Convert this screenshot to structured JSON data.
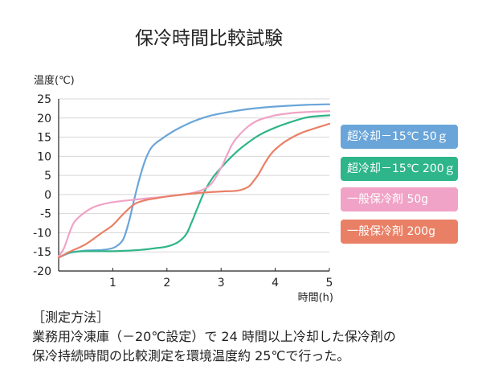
{
  "chart_data": {
    "type": "line",
    "title": "保冷時間比較試験",
    "ylabel": "温度(℃)",
    "xlabel": "時間(h)",
    "xlim": [
      0,
      5
    ],
    "ylim": [
      -20,
      25
    ],
    "xticks": [
      1,
      2,
      3,
      4,
      5
    ],
    "yticks": [
      25,
      20,
      15,
      10,
      5,
      0,
      -5,
      -10,
      -15,
      -20
    ],
    "grid": "horizontal",
    "legend_position": "right",
    "series": [
      {
        "name": "超冷却－15℃ 50ｇ",
        "color": "#6aa5d9",
        "x": [
          0,
          0.2,
          0.4,
          0.6,
          0.8,
          1.0,
          1.1,
          1.2,
          1.3,
          1.4,
          1.5,
          1.6,
          1.7,
          1.8,
          1.9,
          2.0,
          2.2,
          2.5,
          2.8,
          3.2,
          3.6,
          4.0,
          4.5,
          5.0
        ],
        "y": [
          -16.5,
          -15.3,
          -14.8,
          -14.6,
          -14.5,
          -14,
          -13.2,
          -11.5,
          -7,
          -1,
          4.5,
          9,
          12,
          13.5,
          14.5,
          15.5,
          17.2,
          19.2,
          20.6,
          21.7,
          22.5,
          23,
          23.4,
          23.6
        ]
      },
      {
        "name": "超冷却－15℃ 200ｇ",
        "color": "#2eb58a",
        "x": [
          0,
          0.2,
          0.5,
          1.0,
          1.5,
          1.8,
          2.0,
          2.2,
          2.35,
          2.45,
          2.55,
          2.7,
          2.85,
          3.0,
          3.2,
          3.4,
          3.7,
          4.0,
          4.3,
          4.6,
          5.0
        ],
        "y": [
          -16.5,
          -15.2,
          -14.8,
          -14.8,
          -14.5,
          -14.0,
          -13.6,
          -12.5,
          -10.5,
          -7.5,
          -4,
          1,
          4.5,
          7,
          10,
          12.5,
          15.5,
          17.5,
          19,
          20.2,
          20.7
        ]
      },
      {
        "name": "一般保冷剤 50g",
        "color": "#f0a3c6",
        "x": [
          0,
          0.1,
          0.2,
          0.3,
          0.5,
          0.7,
          1.0,
          1.5,
          2.0,
          2.5,
          2.8,
          3.0,
          3.1,
          3.2,
          3.3,
          3.5,
          3.7,
          4.0,
          4.3,
          4.6,
          5.0
        ],
        "y": [
          -16.2,
          -14,
          -10,
          -7,
          -4.5,
          -3,
          -2,
          -1.2,
          -0.5,
          0.5,
          2.5,
          7,
          10,
          13,
          15,
          17.8,
          19.5,
          20.7,
          21.3,
          21.6,
          21.8
        ]
      },
      {
        "name": "一般保冷剤 200g",
        "color": "#e98066",
        "x": [
          0,
          0.2,
          0.5,
          0.8,
          1.0,
          1.2,
          1.4,
          1.6,
          1.8,
          2.0,
          2.5,
          3.0,
          3.3,
          3.5,
          3.6,
          3.7,
          3.8,
          3.9,
          4.0,
          4.2,
          4.5,
          5.0
        ],
        "y": [
          -16.5,
          -15,
          -13,
          -10,
          -8,
          -5,
          -2.5,
          -1.5,
          -1,
          -0.5,
          0.3,
          0.8,
          1,
          2,
          3.5,
          5.5,
          8,
          10.2,
          11.8,
          14,
          16.2,
          18.5
        ]
      }
    ]
  },
  "note": {
    "heading": "［測定方法］",
    "line1": "業務用冷凍庫（－20℃設定）で 24 時間以上冷却した保冷剤の",
    "line2": "保冷持続時間の比較測定を環境温度約 25℃で行った。"
  }
}
